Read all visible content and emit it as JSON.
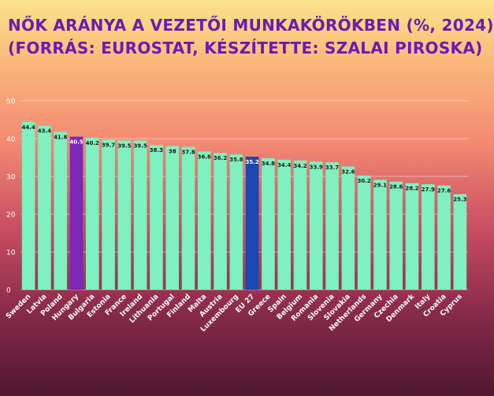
{
  "title_line1": "NŐK ARÁNYA A VEZETŐI MUNKAKÖRÖKBEN (%, 2024)",
  "title_line2": "(FORRÁS: EUROSTAT, KÉSZÍTETTE: SZALAI PIROSKA)",
  "colors": {
    "bar": "#7ff0c0",
    "hungary": "#7a28b5",
    "eu": "#1b48b0",
    "title": "#6a1bb3",
    "grid": "#ffffff"
  },
  "chart_data": {
    "type": "bar",
    "title": "NŐK ARÁNYA A VEZETŐI MUNKAKÖRÖKBEN (%, 2024) (FORRÁS: EUROSTAT, KÉSZÍTETTE: SZALAI PIROSKA)",
    "xlabel": "",
    "ylabel": "",
    "ylim": [
      0,
      50
    ],
    "yticks": [
      0,
      10,
      20,
      30,
      40,
      50
    ],
    "grid": true,
    "categories": [
      "Sweden",
      "Latvia",
      "Poland",
      "Hungary",
      "Bulgaria",
      "Estonia",
      "France",
      "Ireland",
      "Lithuania",
      "Portugal",
      "Finland",
      "Malta",
      "Austria",
      "Luxembourg",
      "EU 27",
      "Greece",
      "Spain",
      "Belgium",
      "Romania",
      "Slovenia",
      "Slovakia",
      "Netherlands",
      "Germany",
      "Czechia",
      "Denmark",
      "Italy",
      "Croatia",
      "Cyprus"
    ],
    "values": [
      44.4,
      43.4,
      41.8,
      40.5,
      40.2,
      39.7,
      39.5,
      39.5,
      38.3,
      38,
      37.8,
      36.6,
      36.2,
      35.8,
      35.2,
      34.8,
      34.4,
      34.2,
      33.9,
      33.7,
      32.6,
      30.2,
      29.1,
      28.6,
      28.2,
      27.9,
      27.6,
      25.3
    ],
    "value_labels": [
      "44.4",
      "43.4",
      "41.8",
      "40.5",
      "40.2",
      "39.7",
      "39.5",
      "39.5",
      "38.3",
      "38",
      "37.8",
      "36.6",
      "36.2",
      "35.8",
      "35.2",
      "34.8",
      "34.4",
      "34.2",
      "33.9",
      "33.7",
      "32.6",
      "30.2",
      "29.1",
      "28.6",
      "28.2",
      "27.9",
      "27.6",
      "25.3"
    ],
    "highlight": {
      "Hungary": "hungary",
      "EU 27": "eu"
    }
  }
}
